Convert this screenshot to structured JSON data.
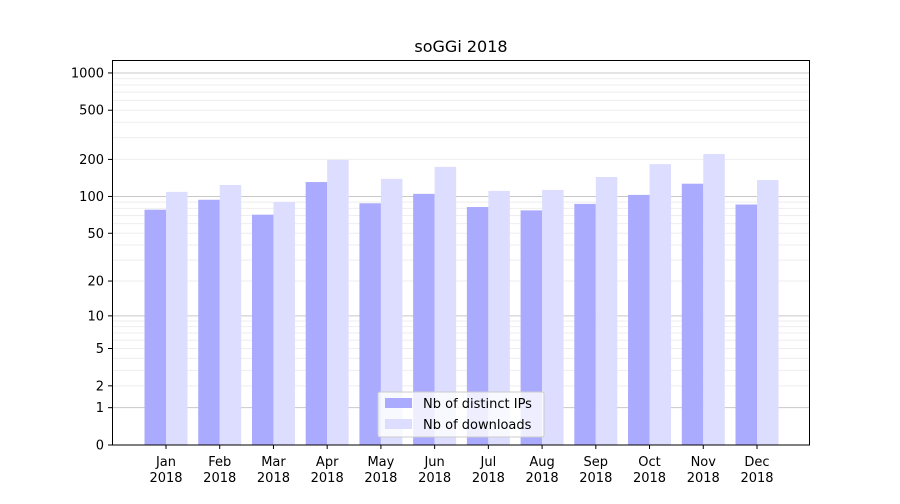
{
  "chart_data": {
    "type": "bar",
    "title": "soGGi 2018",
    "xlabel": "",
    "ylabel": "",
    "yscale": "log(1+y)",
    "ylim": [
      0,
      1300
    ],
    "yticks": [
      0,
      1,
      2,
      5,
      10,
      20,
      50,
      100,
      200,
      500,
      1000
    ],
    "grid": true,
    "legend_position": "bottom-center",
    "categories": [
      "Jan\n2018",
      "Feb\n2018",
      "Mar\n2018",
      "Apr\n2018",
      "May\n2018",
      "Jun\n2018",
      "Jul\n2018",
      "Aug\n2018",
      "Sep\n2018",
      "Oct\n2018",
      "Nov\n2018",
      "Dec\n2018"
    ],
    "series": [
      {
        "name": "Nb of distinct IPs",
        "color": "#aaaaff",
        "values": [
          78,
          94,
          71,
          131,
          88,
          105,
          82,
          77,
          87,
          103,
          127,
          86
        ]
      },
      {
        "name": "Nb of downloads",
        "color": "#ddddff",
        "values": [
          109,
          124,
          90,
          198,
          139,
          174,
          111,
          113,
          144,
          183,
          221,
          136
        ]
      }
    ]
  }
}
